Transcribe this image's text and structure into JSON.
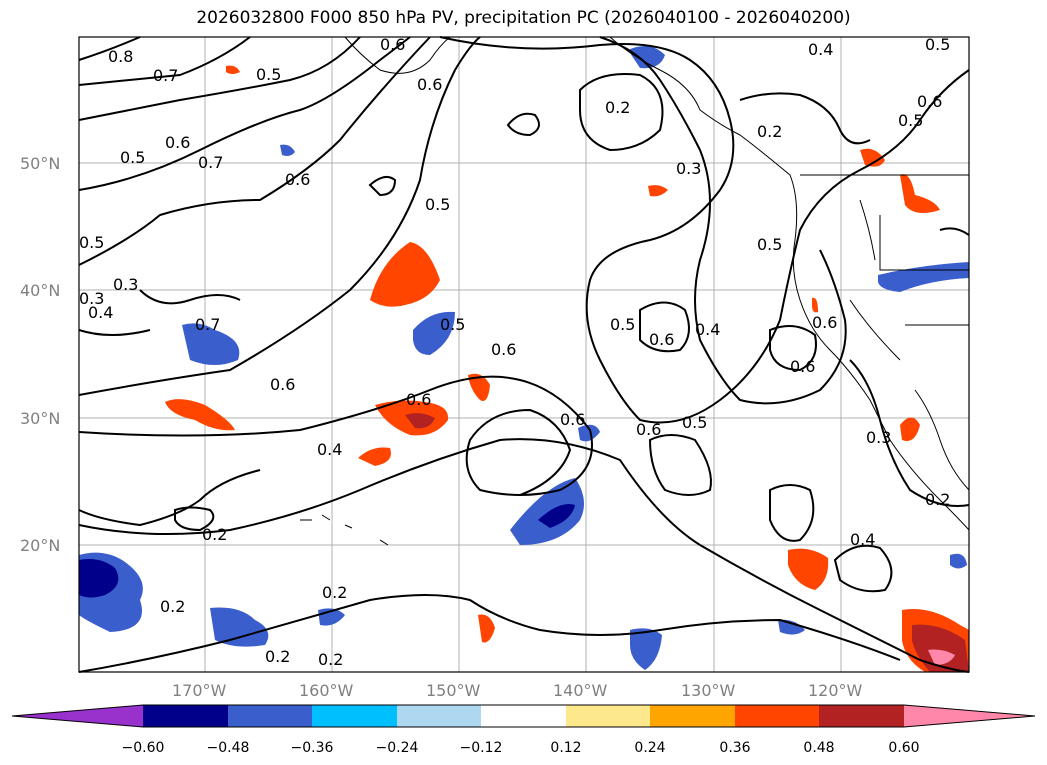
{
  "title": "2026032800 F000 850 hPa PV, precipitation PC (2026040100 - 2026040200)",
  "lat_ticks": [
    "20°N",
    "30°N",
    "40°N",
    "50°N"
  ],
  "lon_ticks": [
    "170°W",
    "160°W",
    "150°W",
    "140°W",
    "130°W",
    "120°W"
  ],
  "contour_labels": [
    "0.8",
    "0.7",
    "0.5",
    "0.6",
    "0.6",
    "0.5",
    "0.6",
    "0.7",
    "0.5",
    "0.6",
    "0.5",
    "0.2",
    "0.2",
    "0.3",
    "0.4",
    "0.5",
    "0.6",
    "0.5",
    "0.3",
    "0.5",
    "0.4",
    "0.3",
    "0.7",
    "0.5",
    "0.6",
    "0.6",
    "0.6",
    "0.5",
    "0.4",
    "0.6",
    "0.6",
    "0.6",
    "0.5",
    "0.6",
    "0.6",
    "0.4",
    "0.3",
    "0.2",
    "0.2",
    "0.2",
    "0.2",
    "0.2",
    "0.4",
    "0.2",
    "0.3"
  ],
  "colorbar": {
    "ticks": [
      "−0.60",
      "−0.48",
      "−0.36",
      "−0.24",
      "−0.12",
      "0.12",
      "0.24",
      "0.36",
      "0.48",
      "0.60"
    ],
    "colors": [
      "#9932cc",
      "#00008b",
      "#3a5fcd",
      "#00bfff",
      "#add8f0",
      "#ffffff",
      "#fde98c",
      "#ffa500",
      "#ff4500",
      "#b22222",
      "#ff88aa"
    ]
  },
  "map_colors": {
    "land_line": "#000000",
    "grid": "#b0b0b0",
    "neg_strong": "#00008b",
    "neg_mid": "#3a5fcd",
    "neg_light": "#00bfff",
    "pos_light": "#ffa500",
    "pos_mid": "#ff4500",
    "pos_strong": "#b22222",
    "pos_max": "#ff88aa"
  }
}
